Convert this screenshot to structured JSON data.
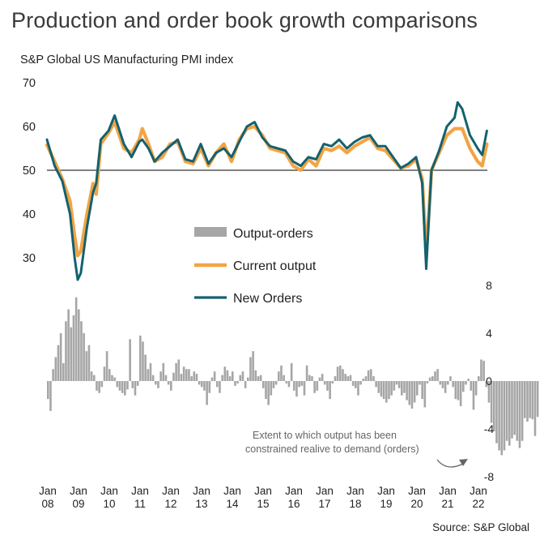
{
  "title": "Production and order book growth comparisons",
  "subtitle": "S&P Global US Manufacturing PMI index",
  "source": "Source: S&P Global",
  "annotation": [
    "Extent to which output has been",
    "constrained realive to demand (orders)"
  ],
  "colors": {
    "output": "#f2a444",
    "orders": "#14616f",
    "diff": "#a6a6a6",
    "text": "#222222"
  },
  "chart_data": [
    {
      "type": "line",
      "x_labels": [
        {
          "year": 2008,
          "label": [
            "Jan",
            "08"
          ]
        },
        {
          "year": 2009,
          "label": [
            "Jan",
            "09"
          ]
        },
        {
          "year": 2010,
          "label": [
            "Jan",
            "10"
          ]
        },
        {
          "year": 2011,
          "label": [
            "Jan",
            "11"
          ]
        },
        {
          "year": 2012,
          "label": [
            "Jan",
            "12"
          ]
        },
        {
          "year": 2013,
          "label": [
            "Jan",
            "13"
          ]
        },
        {
          "year": 2014,
          "label": [
            "Jan",
            "14"
          ]
        },
        {
          "year": 2015,
          "label": [
            "Jan",
            "15"
          ]
        },
        {
          "year": 2016,
          "label": [
            "Jan",
            "16"
          ]
        },
        {
          "year": 2017,
          "label": [
            "Jan",
            "17"
          ]
        },
        {
          "year": 2018,
          "label": [
            "Jan",
            "18"
          ]
        },
        {
          "year": 2019,
          "label": [
            "Jan",
            "19"
          ]
        },
        {
          "year": 2020,
          "label": [
            "Jan",
            "20"
          ]
        },
        {
          "year": 2021,
          "label": [
            "Jan",
            "21"
          ]
        },
        {
          "year": 2022,
          "label": [
            "Jan",
            "22"
          ]
        }
      ],
      "ylim": [
        25,
        70
      ],
      "yticks": [
        30,
        40,
        50,
        60,
        70
      ],
      "reference_line": 50,
      "legend": [
        "Output-orders",
        "Current output",
        "New Orders"
      ],
      "series": [
        {
          "name": "Current output",
          "points": [
            [
              2008.0,
              55.8
            ],
            [
              2008.25,
              52.0
            ],
            [
              2008.5,
              48.0
            ],
            [
              2008.75,
              43.0
            ],
            [
              2008.9,
              35.0
            ],
            [
              2009.0,
              30.5
            ],
            [
              2009.1,
              31.5
            ],
            [
              2009.3,
              40.0
            ],
            [
              2009.5,
              47.0
            ],
            [
              2009.6,
              44.5
            ],
            [
              2009.75,
              56.0
            ],
            [
              2010.0,
              58.5
            ],
            [
              2010.2,
              61.0
            ],
            [
              2010.5,
              55.0
            ],
            [
              2010.75,
              54.0
            ],
            [
              2011.0,
              57.0
            ],
            [
              2011.1,
              59.5
            ],
            [
              2011.3,
              56.0
            ],
            [
              2011.5,
              52.0
            ],
            [
              2011.75,
              53.0
            ],
            [
              2012.0,
              56.0
            ],
            [
              2012.25,
              56.5
            ],
            [
              2012.5,
              52.0
            ],
            [
              2012.75,
              51.5
            ],
            [
              2013.0,
              55.0
            ],
            [
              2013.25,
              51.0
            ],
            [
              2013.5,
              54.0
            ],
            [
              2013.75,
              56.0
            ],
            [
              2014.0,
              52.0
            ],
            [
              2014.25,
              57.0
            ],
            [
              2014.5,
              59.5
            ],
            [
              2014.75,
              60.0
            ],
            [
              2015.0,
              58.0
            ],
            [
              2015.25,
              55.0
            ],
            [
              2015.5,
              54.5
            ],
            [
              2015.75,
              54.0
            ],
            [
              2016.0,
              51.0
            ],
            [
              2016.25,
              50.0
            ],
            [
              2016.5,
              52.5
            ],
            [
              2016.75,
              51.0
            ],
            [
              2017.0,
              55.0
            ],
            [
              2017.25,
              54.5
            ],
            [
              2017.5,
              55.5
            ],
            [
              2017.75,
              54.0
            ],
            [
              2018.0,
              55.5
            ],
            [
              2018.25,
              56.5
            ],
            [
              2018.5,
              57.5
            ],
            [
              2018.75,
              55.0
            ],
            [
              2019.0,
              54.5
            ],
            [
              2019.25,
              52.5
            ],
            [
              2019.5,
              50.5
            ],
            [
              2019.75,
              51.0
            ],
            [
              2020.0,
              52.5
            ],
            [
              2020.2,
              48.0
            ],
            [
              2020.33,
              30.5
            ],
            [
              2020.5,
              50.0
            ],
            [
              2020.75,
              54.0
            ],
            [
              2021.0,
              58.0
            ],
            [
              2021.25,
              59.5
            ],
            [
              2021.5,
              59.5
            ],
            [
              2021.75,
              55.0
            ],
            [
              2022.0,
              52.0
            ],
            [
              2022.15,
              51.0
            ],
            [
              2022.3,
              56.0
            ]
          ]
        },
        {
          "name": "New Orders",
          "points": [
            [
              2008.0,
              57.0
            ],
            [
              2008.25,
              51.0
            ],
            [
              2008.5,
              47.5
            ],
            [
              2008.75,
              40.0
            ],
            [
              2008.9,
              30.0
            ],
            [
              2009.0,
              25.0
            ],
            [
              2009.1,
              26.5
            ],
            [
              2009.3,
              37.0
            ],
            [
              2009.5,
              45.0
            ],
            [
              2009.6,
              47.0
            ],
            [
              2009.75,
              57.0
            ],
            [
              2010.0,
              59.0
            ],
            [
              2010.2,
              62.5
            ],
            [
              2010.5,
              56.0
            ],
            [
              2010.75,
              53.0
            ],
            [
              2011.0,
              56.5
            ],
            [
              2011.1,
              57.0
            ],
            [
              2011.3,
              55.0
            ],
            [
              2011.5,
              52.0
            ],
            [
              2011.75,
              54.0
            ],
            [
              2012.0,
              55.5
            ],
            [
              2012.25,
              57.0
            ],
            [
              2012.5,
              52.5
            ],
            [
              2012.75,
              52.0
            ],
            [
              2013.0,
              56.0
            ],
            [
              2013.25,
              51.5
            ],
            [
              2013.5,
              54.0
            ],
            [
              2013.75,
              55.0
            ],
            [
              2014.0,
              53.0
            ],
            [
              2014.25,
              56.5
            ],
            [
              2014.5,
              60.0
            ],
            [
              2014.75,
              61.0
            ],
            [
              2015.0,
              57.5
            ],
            [
              2015.25,
              55.5
            ],
            [
              2015.5,
              55.0
            ],
            [
              2015.75,
              54.5
            ],
            [
              2016.0,
              52.0
            ],
            [
              2016.25,
              51.0
            ],
            [
              2016.5,
              53.0
            ],
            [
              2016.75,
              52.5
            ],
            [
              2017.0,
              56.0
            ],
            [
              2017.25,
              55.5
            ],
            [
              2017.5,
              57.0
            ],
            [
              2017.75,
              55.0
            ],
            [
              2018.0,
              56.5
            ],
            [
              2018.25,
              57.5
            ],
            [
              2018.5,
              58.0
            ],
            [
              2018.75,
              55.5
            ],
            [
              2019.0,
              55.5
            ],
            [
              2019.25,
              53.0
            ],
            [
              2019.5,
              50.5
            ],
            [
              2019.75,
              51.5
            ],
            [
              2020.0,
              53.0
            ],
            [
              2020.2,
              47.0
            ],
            [
              2020.33,
              27.5
            ],
            [
              2020.5,
              50.0
            ],
            [
              2020.75,
              54.5
            ],
            [
              2021.0,
              60.0
            ],
            [
              2021.25,
              62.0
            ],
            [
              2021.35,
              65.5
            ],
            [
              2021.5,
              64.0
            ],
            [
              2021.75,
              58.0
            ],
            [
              2022.0,
              55.0
            ],
            [
              2022.15,
              53.5
            ],
            [
              2022.3,
              59.0
            ]
          ]
        }
      ]
    },
    {
      "type": "bar",
      "name": "Output-orders",
      "ylim": [
        -8,
        8
      ],
      "yticks": [
        8,
        4,
        0,
        -4,
        -8
      ],
      "start_year": 2008,
      "values": [
        -1.5,
        -2.5,
        1.0,
        2.0,
        3.0,
        4.0,
        1.5,
        5.0,
        6.0,
        4.5,
        5.5,
        7.0,
        6.0,
        5.0,
        4.0,
        2.5,
        3.0,
        0.8,
        0.5,
        -0.8,
        -1.0,
        -0.5,
        1.2,
        2.5,
        1.0,
        0.5,
        0.3,
        -0.5,
        -0.8,
        -1.0,
        -1.2,
        -0.7,
        3.5,
        -0.6,
        -1.2,
        -0.4,
        3.8,
        3.3,
        2.2,
        1.0,
        1.5,
        0.5,
        -0.3,
        -0.6,
        0.8,
        1.5,
        0.5,
        -0.3,
        -0.8,
        0.7,
        1.5,
        1.8,
        0.6,
        1.2,
        1.0,
        1.0,
        0.4,
        0.8,
        0.6,
        -0.3,
        -0.5,
        -0.8,
        -2.0,
        -1.0,
        0.3,
        0.8,
        -0.5,
        -1.0,
        0.5,
        1.2,
        0.9,
        0.4,
        0.8,
        -0.4,
        -0.2,
        0.5,
        0.8,
        -0.6,
        0.3,
        2.0,
        2.5,
        0.9,
        0.4,
        0.5,
        -0.6,
        -1.5,
        -2.0,
        -1.2,
        -0.6,
        -0.3,
        0.8,
        1.3,
        0.5,
        -0.2,
        -0.5,
        1.5,
        -0.8,
        -1.3,
        -0.5,
        -0.4,
        -1.2,
        1.3,
        0.5,
        0.4,
        -1.0,
        -0.8,
        0.3,
        0.6,
        -0.3,
        -0.8,
        -1.5,
        -0.2,
        0.4,
        1.2,
        1.3,
        1.0,
        0.6,
        0.4,
        0.5,
        -0.4,
        -0.6,
        -1.2,
        -0.3,
        0.2,
        0.4,
        0.9,
        1.0,
        0.4,
        -0.5,
        -1.0,
        -1.3,
        -1.5,
        -1.8,
        -1.5,
        -1.2,
        -0.8,
        -0.3,
        -0.6,
        -1.2,
        -1.0,
        -1.6,
        -2.0,
        -2.3,
        -1.8,
        -1.2,
        -0.3,
        -1.5,
        -2.2,
        -0.2,
        0.3,
        0.4,
        0.8,
        1.0,
        -0.3,
        -0.6,
        -1.0,
        -0.3,
        0.4,
        -0.5,
        -1.5,
        -1.6,
        -2.1,
        -0.9,
        -0.3,
        0.2,
        -0.8,
        -2.4,
        -1.2,
        0.4,
        1.8,
        1.7,
        -0.5,
        -1.8,
        -3.5,
        -4.2,
        -5.2,
        -5.8,
        -6.2,
        -5.8,
        -5.0,
        -5.4,
        -4.8,
        -4.5,
        -5.0,
        -5.6,
        -5.0,
        -3.1,
        -3.4,
        -3.1,
        -3.2,
        -4.6,
        -3.0
      ]
    }
  ]
}
